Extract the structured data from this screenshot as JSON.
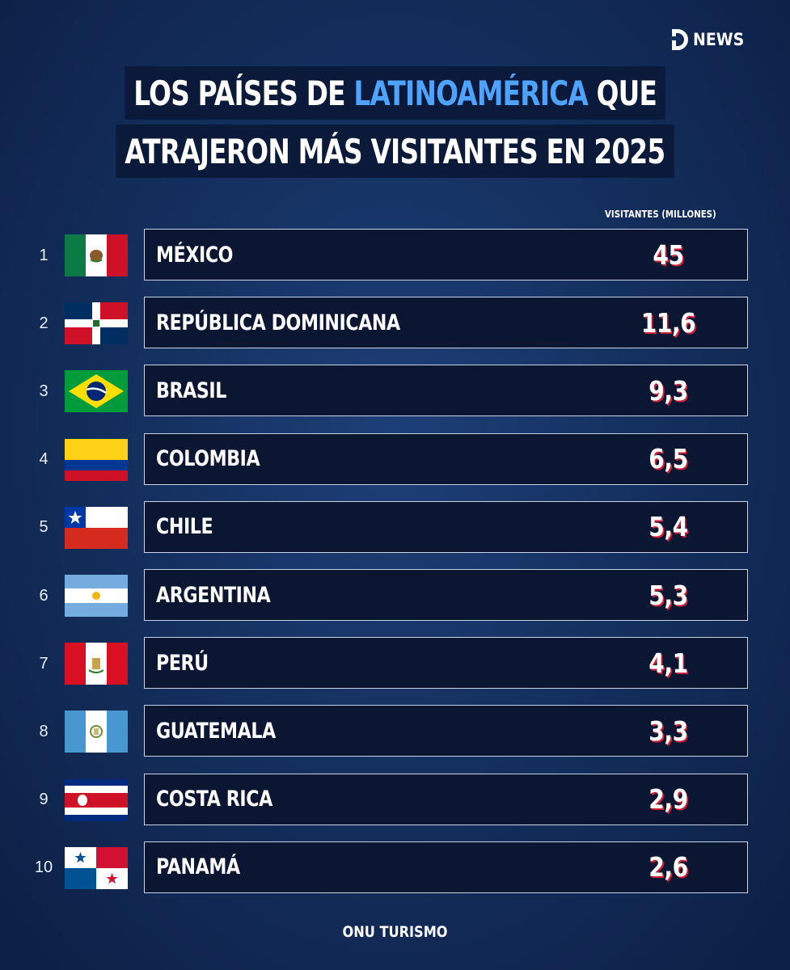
{
  "logo": {
    "text": "NEWS"
  },
  "title": {
    "line1_pre": "LOS PAÍSES DE ",
    "line1_highlight": "LATINOAMÉRICA",
    "line1_post": " QUE",
    "line2": "ATRAJERON MÁS VISITANTES EN 2025"
  },
  "source": "ONU TURISMO",
  "colors": {
    "highlight": "#4ea3ff",
    "value_shadow": "#d0213a",
    "background": "#14305f"
  },
  "chart_data": {
    "type": "table",
    "column_header": "VISITANTES (MILLONES)",
    "rows": [
      {
        "rank": "1",
        "flag": "mexico-flag",
        "country": "MÉXICO",
        "value": "45"
      },
      {
        "rank": "2",
        "flag": "dominican-flag",
        "country": "REPÚBLICA DOMINICANA",
        "value": "11,6"
      },
      {
        "rank": "3",
        "flag": "brazil-flag",
        "country": "BRASIL",
        "value": "9,3"
      },
      {
        "rank": "4",
        "flag": "colombia-flag",
        "country": "COLOMBIA",
        "value": "6,5"
      },
      {
        "rank": "5",
        "flag": "chile-flag",
        "country": "CHILE",
        "value": "5,4"
      },
      {
        "rank": "6",
        "flag": "argentina-flag",
        "country": "ARGENTINA",
        "value": "5,3"
      },
      {
        "rank": "7",
        "flag": "peru-flag",
        "country": "PERÚ",
        "value": "4,1"
      },
      {
        "rank": "8",
        "flag": "guatemala-flag",
        "country": "GUATEMALA",
        "value": "3,3"
      },
      {
        "rank": "9",
        "flag": "costa-rica-flag",
        "country": "COSTA RICA",
        "value": "2,9"
      },
      {
        "rank": "10",
        "flag": "panama-flag",
        "country": "PANAMÁ",
        "value": "2,6"
      }
    ]
  }
}
